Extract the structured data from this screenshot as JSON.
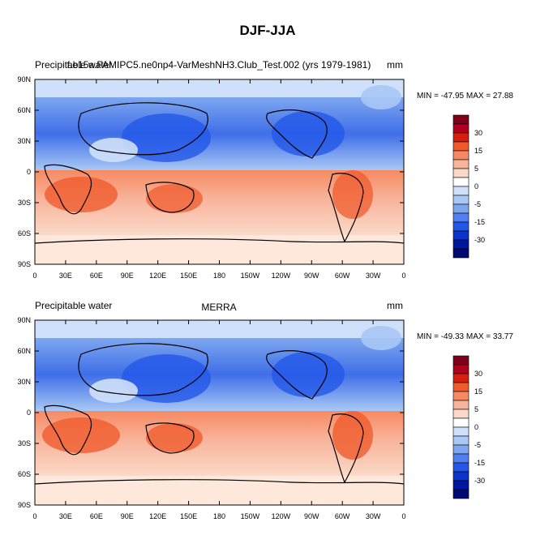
{
  "page_title": "DJF-JJA",
  "chart_data": [
    {
      "type": "heatmap",
      "left_label": "Precipitable water",
      "center_label": "f.e15a.FAMIPC5.ne0np4-VarMeshNH3.Club_Test.002 (yrs 1979-1981)",
      "units": "mm",
      "stats": "MIN = -47.95 MAX =  27.88",
      "x_ticks": [
        "0",
        "30E",
        "60E",
        "90E",
        "120E",
        "150E",
        "180",
        "150W",
        "120W",
        "90W",
        "60W",
        "30W",
        "0"
      ],
      "y_ticks": [
        "90N",
        "60N",
        "30N",
        "0",
        "30S",
        "60S",
        "90S"
      ],
      "colorbar_levels": [
        "#80001a",
        "#b3001f",
        "#d61f0f",
        "#f05b2e",
        "#f68a62",
        "#f8b49b",
        "#fbd9c8",
        "#ffffff",
        "#cfe0fa",
        "#a9c8f5",
        "#7ea7ef",
        "#4f7ff0",
        "#2357e8",
        "#0b33c9",
        "#00189e",
        "#000a73"
      ],
      "colorbar_labels": [
        "30",
        "15",
        "5",
        "0",
        "-5",
        "-15",
        "-30"
      ]
    },
    {
      "type": "heatmap",
      "left_label": "Precipitable water",
      "center_label": "MERRA",
      "units": "mm",
      "stats": "MIN = -49.33 MAX =  33.77",
      "x_ticks": [
        "0",
        "30E",
        "60E",
        "90E",
        "120E",
        "150E",
        "180",
        "150W",
        "120W",
        "90W",
        "60W",
        "30W",
        "0"
      ],
      "y_ticks": [
        "90N",
        "60N",
        "30N",
        "0",
        "30S",
        "60S",
        "90S"
      ],
      "colorbar_levels": [
        "#80001a",
        "#b3001f",
        "#d61f0f",
        "#f05b2e",
        "#f68a62",
        "#f8b49b",
        "#fbd9c8",
        "#ffffff",
        "#cfe0fa",
        "#a9c8f5",
        "#7ea7ef",
        "#4f7ff0",
        "#2357e8",
        "#0b33c9",
        "#00189e",
        "#000a73"
      ],
      "colorbar_labels": [
        "30",
        "15",
        "5",
        "0",
        "-5",
        "-15",
        "-30"
      ]
    }
  ]
}
